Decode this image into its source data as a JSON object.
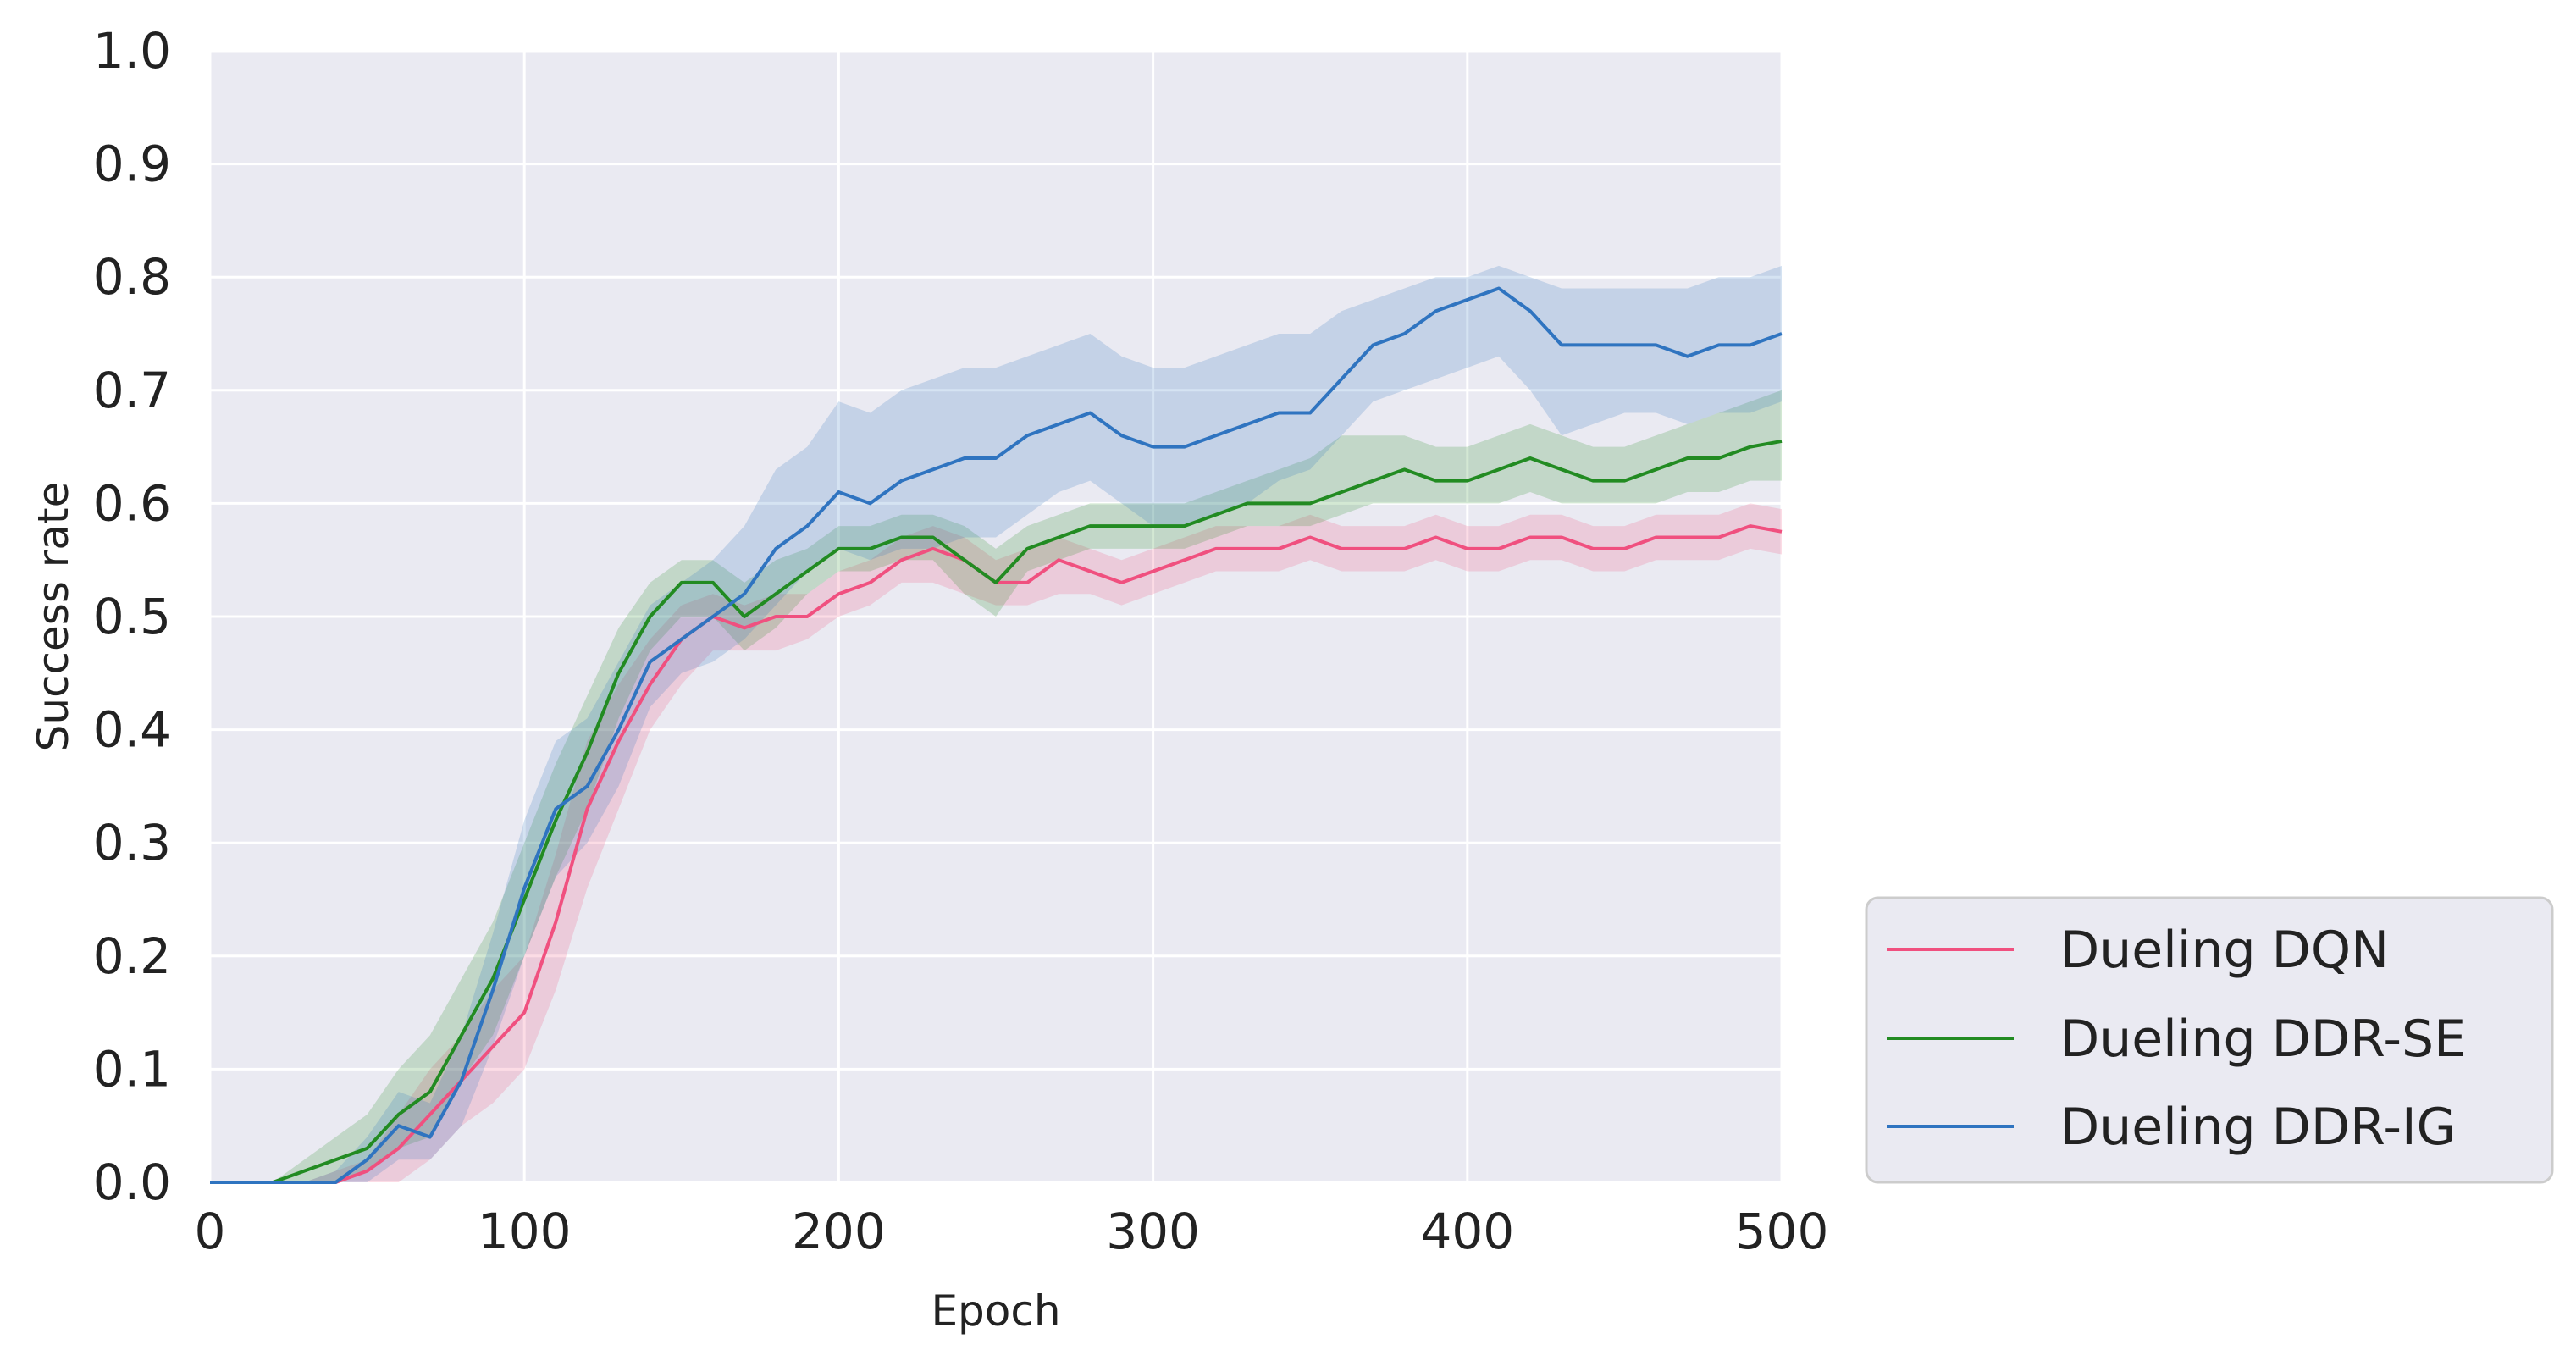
{
  "chart_data": {
    "type": "line",
    "title": "",
    "xlabel": "Epoch",
    "ylabel": "Success rate",
    "xlim": [
      0,
      500
    ],
    "ylim": [
      0.0,
      1.0
    ],
    "xticks": [
      "0",
      "100",
      "200",
      "300",
      "400",
      "500"
    ],
    "yticks": [
      "0.0",
      "0.1",
      "0.2",
      "0.3",
      "0.4",
      "0.5",
      "0.6",
      "0.7",
      "0.8",
      "0.9",
      "1.0"
    ],
    "grid": true,
    "legend_position": "outside-bottom-right",
    "x": [
      0,
      20,
      30,
      40,
      50,
      60,
      70,
      80,
      90,
      100,
      110,
      120,
      130,
      140,
      150,
      160,
      170,
      180,
      190,
      200,
      210,
      220,
      230,
      240,
      250,
      260,
      270,
      280,
      290,
      300,
      310,
      320,
      330,
      340,
      350,
      360,
      370,
      380,
      390,
      400,
      410,
      420,
      430,
      440,
      450,
      460,
      470,
      480,
      490,
      500
    ],
    "series": [
      {
        "name": "Dueling DQN",
        "color": "#f0507f",
        "values": [
          0,
          0,
          0,
          0,
          0.01,
          0.03,
          0.06,
          0.09,
          0.12,
          0.15,
          0.23,
          0.33,
          0.39,
          0.44,
          0.48,
          0.5,
          0.49,
          0.5,
          0.5,
          0.52,
          0.53,
          0.55,
          0.56,
          0.55,
          0.53,
          0.53,
          0.55,
          0.54,
          0.53,
          0.54,
          0.55,
          0.56,
          0.56,
          0.56,
          0.57,
          0.56,
          0.56,
          0.56,
          0.57,
          0.56,
          0.56,
          0.57,
          0.57,
          0.56,
          0.56,
          0.57,
          0.57,
          0.57,
          0.58,
          0.575
        ],
        "lower": [
          0,
          0,
          0,
          0,
          0,
          0,
          0.02,
          0.05,
          0.07,
          0.1,
          0.17,
          0.26,
          0.33,
          0.4,
          0.44,
          0.47,
          0.47,
          0.47,
          0.48,
          0.5,
          0.51,
          0.53,
          0.53,
          0.52,
          0.51,
          0.51,
          0.52,
          0.52,
          0.51,
          0.52,
          0.53,
          0.54,
          0.54,
          0.54,
          0.55,
          0.54,
          0.54,
          0.54,
          0.55,
          0.54,
          0.54,
          0.55,
          0.55,
          0.54,
          0.54,
          0.55,
          0.55,
          0.55,
          0.56,
          0.555
        ],
        "upper": [
          0,
          0,
          0,
          0.01,
          0.02,
          0.06,
          0.1,
          0.13,
          0.17,
          0.2,
          0.29,
          0.39,
          0.44,
          0.48,
          0.51,
          0.52,
          0.51,
          0.52,
          0.52,
          0.54,
          0.55,
          0.57,
          0.58,
          0.57,
          0.55,
          0.56,
          0.57,
          0.56,
          0.55,
          0.56,
          0.57,
          0.58,
          0.58,
          0.58,
          0.59,
          0.58,
          0.58,
          0.58,
          0.59,
          0.58,
          0.58,
          0.59,
          0.59,
          0.58,
          0.58,
          0.59,
          0.59,
          0.59,
          0.6,
          0.595
        ]
      },
      {
        "name": "Dueling DDR-SE",
        "color": "#228b22",
        "values": [
          0,
          0,
          0.01,
          0.02,
          0.03,
          0.06,
          0.08,
          0.13,
          0.18,
          0.25,
          0.32,
          0.38,
          0.45,
          0.5,
          0.53,
          0.53,
          0.5,
          0.52,
          0.54,
          0.56,
          0.56,
          0.57,
          0.57,
          0.55,
          0.53,
          0.56,
          0.57,
          0.58,
          0.58,
          0.58,
          0.58,
          0.59,
          0.6,
          0.6,
          0.6,
          0.61,
          0.62,
          0.63,
          0.62,
          0.62,
          0.63,
          0.64,
          0.63,
          0.62,
          0.62,
          0.63,
          0.64,
          0.64,
          0.65,
          0.655
        ],
        "lower": [
          0,
          0,
          0,
          0,
          0.01,
          0.03,
          0.04,
          0.09,
          0.13,
          0.2,
          0.27,
          0.33,
          0.41,
          0.47,
          0.5,
          0.5,
          0.47,
          0.49,
          0.52,
          0.54,
          0.54,
          0.55,
          0.55,
          0.52,
          0.5,
          0.54,
          0.55,
          0.56,
          0.56,
          0.56,
          0.56,
          0.57,
          0.58,
          0.58,
          0.58,
          0.59,
          0.6,
          0.6,
          0.6,
          0.6,
          0.6,
          0.61,
          0.6,
          0.6,
          0.6,
          0.6,
          0.61,
          0.61,
          0.62,
          0.62
        ],
        "upper": [
          0,
          0,
          0.02,
          0.04,
          0.06,
          0.1,
          0.13,
          0.18,
          0.23,
          0.3,
          0.37,
          0.43,
          0.49,
          0.53,
          0.55,
          0.55,
          0.53,
          0.55,
          0.56,
          0.58,
          0.58,
          0.59,
          0.59,
          0.58,
          0.56,
          0.58,
          0.59,
          0.6,
          0.6,
          0.6,
          0.6,
          0.61,
          0.62,
          0.63,
          0.64,
          0.66,
          0.66,
          0.66,
          0.65,
          0.65,
          0.66,
          0.67,
          0.66,
          0.65,
          0.65,
          0.66,
          0.67,
          0.68,
          0.69,
          0.7
        ]
      },
      {
        "name": "Dueling DDR-IG",
        "color": "#2f74c0",
        "values": [
          0,
          0,
          0,
          0,
          0.02,
          0.05,
          0.04,
          0.09,
          0.17,
          0.26,
          0.33,
          0.35,
          0.4,
          0.46,
          0.48,
          0.5,
          0.52,
          0.56,
          0.58,
          0.61,
          0.6,
          0.62,
          0.63,
          0.64,
          0.64,
          0.66,
          0.67,
          0.68,
          0.66,
          0.65,
          0.65,
          0.66,
          0.67,
          0.68,
          0.68,
          0.71,
          0.74,
          0.75,
          0.77,
          0.78,
          0.79,
          0.77,
          0.74,
          0.74,
          0.74,
          0.74,
          0.73,
          0.74,
          0.74,
          0.75
        ],
        "lower": [
          0,
          0,
          0,
          0,
          0,
          0.02,
          0.02,
          0.05,
          0.12,
          0.2,
          0.27,
          0.3,
          0.35,
          0.42,
          0.45,
          0.46,
          0.48,
          0.51,
          0.54,
          0.56,
          0.55,
          0.56,
          0.56,
          0.57,
          0.57,
          0.59,
          0.61,
          0.62,
          0.6,
          0.58,
          0.58,
          0.59,
          0.6,
          0.62,
          0.63,
          0.66,
          0.69,
          0.7,
          0.71,
          0.72,
          0.73,
          0.7,
          0.66,
          0.67,
          0.68,
          0.68,
          0.67,
          0.68,
          0.68,
          0.69
        ],
        "upper": [
          0,
          0,
          0,
          0.01,
          0.04,
          0.08,
          0.07,
          0.13,
          0.22,
          0.32,
          0.39,
          0.41,
          0.46,
          0.51,
          0.53,
          0.55,
          0.58,
          0.63,
          0.65,
          0.69,
          0.68,
          0.7,
          0.71,
          0.72,
          0.72,
          0.73,
          0.74,
          0.75,
          0.73,
          0.72,
          0.72,
          0.73,
          0.74,
          0.75,
          0.75,
          0.77,
          0.78,
          0.79,
          0.8,
          0.8,
          0.81,
          0.8,
          0.79,
          0.79,
          0.79,
          0.79,
          0.79,
          0.8,
          0.8,
          0.81
        ]
      }
    ]
  }
}
